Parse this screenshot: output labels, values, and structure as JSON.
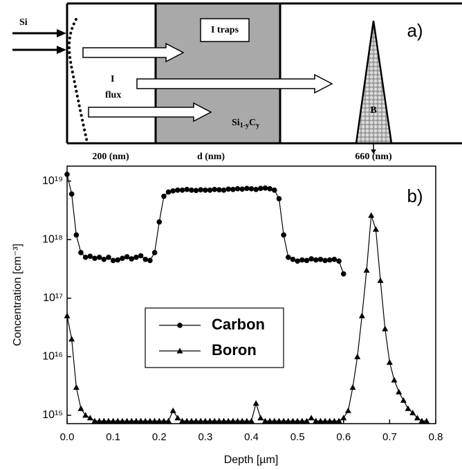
{
  "diagram": {
    "label": "a)",
    "source": "Si",
    "traps": "I traps",
    "flux_symbol": "I",
    "flux": "flux",
    "layer": {
      "base": "Si",
      "sub1": "1-y",
      "mid": "C",
      "sub2": "y"
    },
    "marker": "B",
    "depths": [
      "200 (nm)",
      "d (nm)",
      "660 (nm)"
    ]
  },
  "chart_data": {
    "type": "line",
    "panel_label": "b)",
    "x_label": "Depth [µm]",
    "y_label": "Concentration [cm⁻³]",
    "xlim": [
      0,
      0.8
    ],
    "xticks": [
      {
        "value": 0,
        "label": "0.0"
      },
      0.1,
      0.2,
      0.3,
      0.4,
      0.5,
      0.6,
      0.7,
      0.8
    ],
    "ylim": [
      720000000000000.0,
      1.8e+19
    ],
    "log_y": true,
    "yticks": [
      {
        "value": 1000000000000000.0,
        "label": "10¹⁵"
      },
      {
        "value": 1e+16,
        "label": "10¹⁶"
      },
      {
        "value": 1e+17,
        "label": "10¹⁷"
      },
      {
        "value": 1e+18,
        "label": "10¹⁸"
      },
      {
        "value": 1e+19,
        "label": "10¹⁹"
      }
    ],
    "grid": false,
    "legend": "center-left",
    "series": [
      {
        "name": "Carbon",
        "color": "#000000",
        "marker": "circle",
        "x": [
          0,
          0.01,
          0.02,
          0.03,
          0.04,
          0.05,
          0.06,
          0.07,
          0.08,
          0.09,
          0.1,
          0.11,
          0.12,
          0.13,
          0.14,
          0.15,
          0.16,
          0.17,
          0.18,
          0.19,
          0.2,
          0.21,
          0.22,
          0.23,
          0.24,
          0.25,
          0.26,
          0.27,
          0.28,
          0.29,
          0.3,
          0.31,
          0.32,
          0.33,
          0.34,
          0.35,
          0.36,
          0.37,
          0.38,
          0.39,
          0.4,
          0.41,
          0.42,
          0.43,
          0.44,
          0.45,
          0.46,
          0.47,
          0.48,
          0.49,
          0.5,
          0.51,
          0.52,
          0.53,
          0.54,
          0.55,
          0.56,
          0.57,
          0.58,
          0.59,
          0.6
        ],
        "values": [
          1.3e+19,
          6e+18,
          1.2e+18,
          6e+17,
          5e+17,
          5.2e+17,
          4.8e+17,
          5e+17,
          4.6e+17,
          5e+17,
          4.4e+17,
          4.5e+17,
          4.8e+17,
          5.1e+17,
          4.7e+17,
          5e+17,
          5.3e+17,
          4.6e+17,
          4.4e+17,
          6e+17,
          2e+18,
          5.5e+18,
          6.5e+18,
          6.8e+18,
          7e+18,
          7e+18,
          7.2e+18,
          7e+18,
          6.9e+18,
          7.1e+18,
          7e+18,
          7e+18,
          7.2e+18,
          7.1e+18,
          7e+18,
          7.3e+18,
          7.2e+18,
          7.4e+18,
          7.3e+18,
          7.5e+18,
          7.4e+18,
          7.2e+18,
          7.5e+18,
          7.6e+18,
          7.4e+18,
          7e+18,
          5e+18,
          1.2e+18,
          5e+17,
          4.6e+17,
          4.3e+17,
          4.5e+17,
          4.4e+17,
          4.7e+17,
          4.5e+17,
          4.6e+17,
          4.4e+17,
          4.5e+17,
          4.6e+17,
          4.3e+17,
          2.6e+17
        ]
      },
      {
        "name": "Boron",
        "color": "#000000",
        "marker": "triangle",
        "x": [
          0,
          0.01,
          0.02,
          0.03,
          0.04,
          0.05,
          0.06,
          0.07,
          0.08,
          0.09,
          0.1,
          0.11,
          0.12,
          0.13,
          0.14,
          0.15,
          0.16,
          0.17,
          0.18,
          0.19,
          0.2,
          0.21,
          0.22,
          0.23,
          0.24,
          0.25,
          0.26,
          0.27,
          0.28,
          0.29,
          0.3,
          0.31,
          0.32,
          0.33,
          0.34,
          0.35,
          0.36,
          0.37,
          0.38,
          0.39,
          0.4,
          0.41,
          0.42,
          0.43,
          0.44,
          0.45,
          0.46,
          0.47,
          0.48,
          0.49,
          0.5,
          0.51,
          0.52,
          0.53,
          0.54,
          0.55,
          0.56,
          0.57,
          0.58,
          0.59,
          0.6,
          0.61,
          0.62,
          0.63,
          0.64,
          0.65,
          0.66,
          0.67,
          0.68,
          0.69,
          0.7,
          0.71,
          0.72,
          0.73,
          0.74,
          0.75,
          0.76,
          0.77,
          0.78
        ],
        "values": [
          5e+16,
          2e+16,
          3000000000000000.0,
          1300000000000000.0,
          1000000000000000.0,
          900000000000000.0,
          800000000000000.0,
          800000000000000.0,
          800000000000000.0,
          800000000000000.0,
          800000000000000.0,
          800000000000000.0,
          800000000000000.0,
          800000000000000.0,
          800000000000000.0,
          800000000000000.0,
          800000000000000.0,
          800000000000000.0,
          800000000000000.0,
          800000000000000.0,
          800000000000000.0,
          800000000000000.0,
          800000000000000.0,
          1200000000000000.0,
          900000000000000.0,
          800000000000000.0,
          800000000000000.0,
          800000000000000.0,
          800000000000000.0,
          800000000000000.0,
          800000000000000.0,
          800000000000000.0,
          800000000000000.0,
          800000000000000.0,
          800000000000000.0,
          800000000000000.0,
          800000000000000.0,
          800000000000000.0,
          800000000000000.0,
          800000000000000.0,
          800000000000000.0,
          1600000000000000.0,
          900000000000000.0,
          800000000000000.0,
          800000000000000.0,
          800000000000000.0,
          800000000000000.0,
          800000000000000.0,
          800000000000000.0,
          800000000000000.0,
          800000000000000.0,
          800000000000000.0,
          800000000000000.0,
          900000000000000.0,
          800000000000000.0,
          800000000000000.0,
          800000000000000.0,
          800000000000000.0,
          800000000000000.0,
          800000000000000.0,
          900000000000000.0,
          1200000000000000.0,
          3000000000000000.0,
          1e+16,
          5e+16,
          3e+17,
          2.6e+18,
          1.5e+18,
          2e+17,
          3e+16,
          8000000000000000.0,
          4000000000000000.0,
          2500000000000000.0,
          1800000000000000.0,
          1300000000000000.0,
          1100000000000000.0,
          900000000000000.0,
          800000000000000.0,
          800000000000000.0
        ]
      }
    ]
  }
}
